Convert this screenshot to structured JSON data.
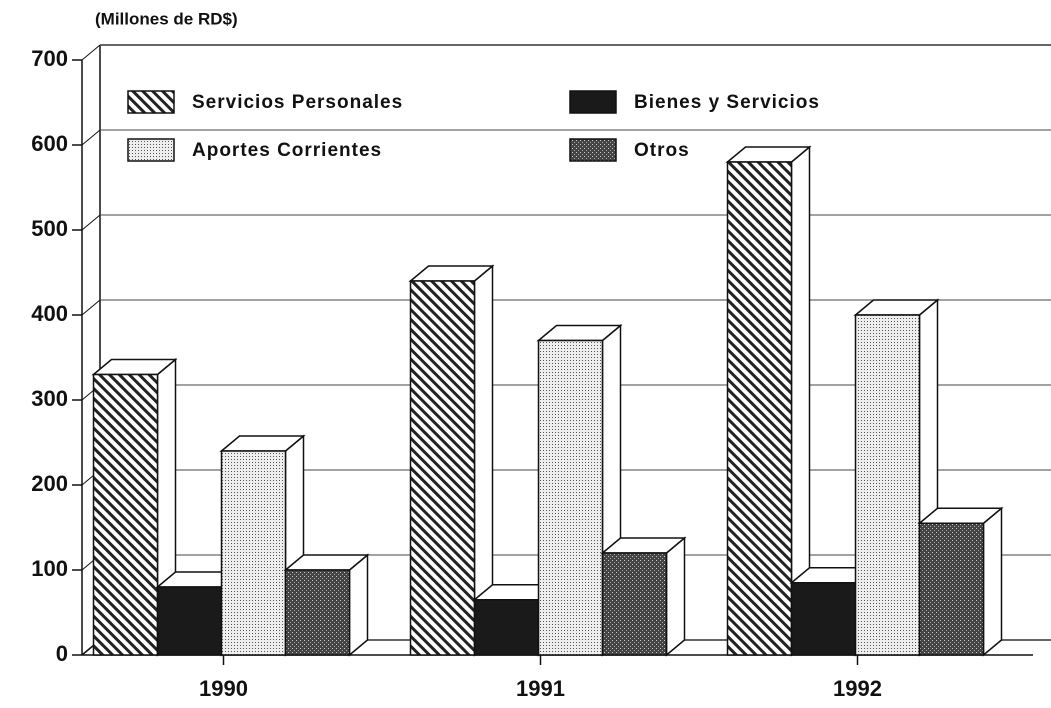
{
  "chart_data": {
    "type": "bar3d",
    "ylabel": "(Millones de RD$)",
    "categories": [
      "1990",
      "1991",
      "1992"
    ],
    "series": [
      {
        "name": "Servicios Personales",
        "color": "#222",
        "pattern": "diagonal",
        "values": [
          330,
          440,
          580
        ]
      },
      {
        "name": "Bienes y Servicios",
        "color": "#1a1a1a",
        "pattern": "solid",
        "values": [
          80,
          65,
          85
        ]
      },
      {
        "name": "Aportes Corrientes",
        "color": "#888",
        "pattern": "dots",
        "values": [
          240,
          370,
          400
        ]
      },
      {
        "name": "Otros",
        "color": "#333",
        "pattern": "crosshatch",
        "values": [
          100,
          120,
          155
        ]
      }
    ],
    "ylim": [
      0,
      700
    ],
    "yticks": [
      0,
      100,
      200,
      300,
      400,
      500,
      600,
      700
    ],
    "grid": true
  }
}
